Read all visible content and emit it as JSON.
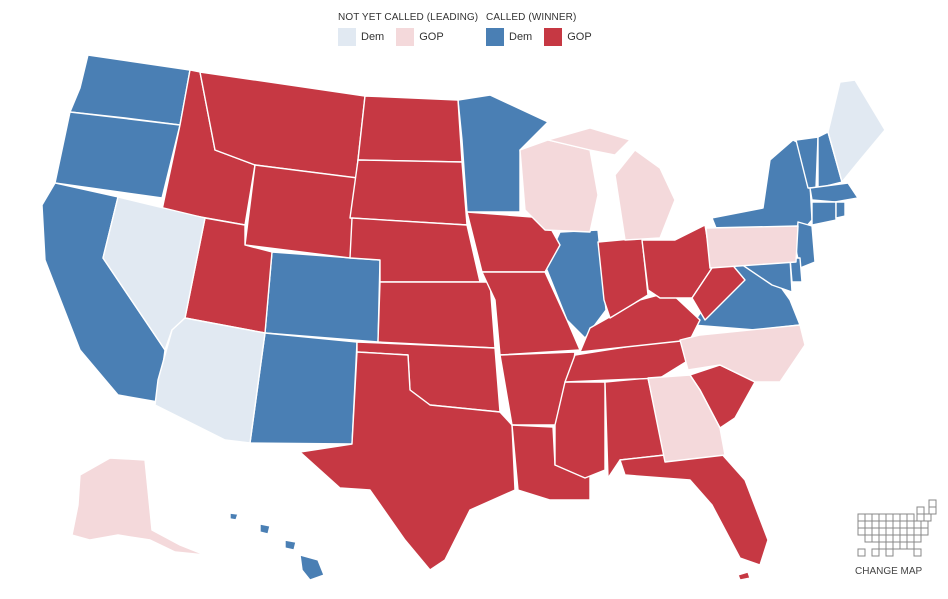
{
  "legend": {
    "not_called": {
      "title": "NOT YET CALLED (LEADING)",
      "dem_label": "Dem",
      "gop_label": "GOP"
    },
    "called": {
      "title": "CALLED (WINNER)",
      "dem_label": "Dem",
      "gop_label": "GOP"
    }
  },
  "colors": {
    "dem_called": "#4a7fb4",
    "gop_called": "#c63843",
    "dem_leading": "#e1e9f2",
    "gop_leading": "#f4d9db"
  },
  "change_map": {
    "label": "CHANGE MAP",
    "icon": "grid-map-icon"
  }
}
